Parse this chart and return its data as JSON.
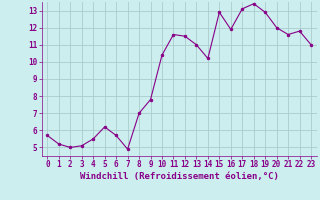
{
  "x": [
    0,
    1,
    2,
    3,
    4,
    5,
    6,
    7,
    8,
    9,
    10,
    11,
    12,
    13,
    14,
    15,
    16,
    17,
    18,
    19,
    20,
    21,
    22,
    23
  ],
  "y": [
    5.7,
    5.2,
    5.0,
    5.1,
    5.5,
    6.2,
    5.7,
    4.9,
    7.0,
    7.8,
    10.4,
    11.6,
    11.5,
    11.0,
    10.2,
    12.9,
    11.9,
    13.1,
    13.4,
    12.9,
    12.0,
    11.6,
    11.8,
    11.0
  ],
  "line_color": "#880088",
  "marker": ".",
  "marker_size": 4,
  "bg_color": "#cceeee",
  "grid_color": "#aacccc",
  "xlabel": "Windchill (Refroidissement éolien,°C)",
  "label_color": "#880088",
  "tick_fontsize": 5.5,
  "xlabel_fontsize": 6.5,
  "ylim": [
    4.5,
    13.5
  ],
  "xlim": [
    -0.5,
    23.5
  ],
  "yticks": [
    5,
    6,
    7,
    8,
    9,
    10,
    11,
    12,
    13
  ],
  "xticks": [
    0,
    1,
    2,
    3,
    4,
    5,
    6,
    7,
    8,
    9,
    10,
    11,
    12,
    13,
    14,
    15,
    16,
    17,
    18,
    19,
    20,
    21,
    22,
    23
  ]
}
